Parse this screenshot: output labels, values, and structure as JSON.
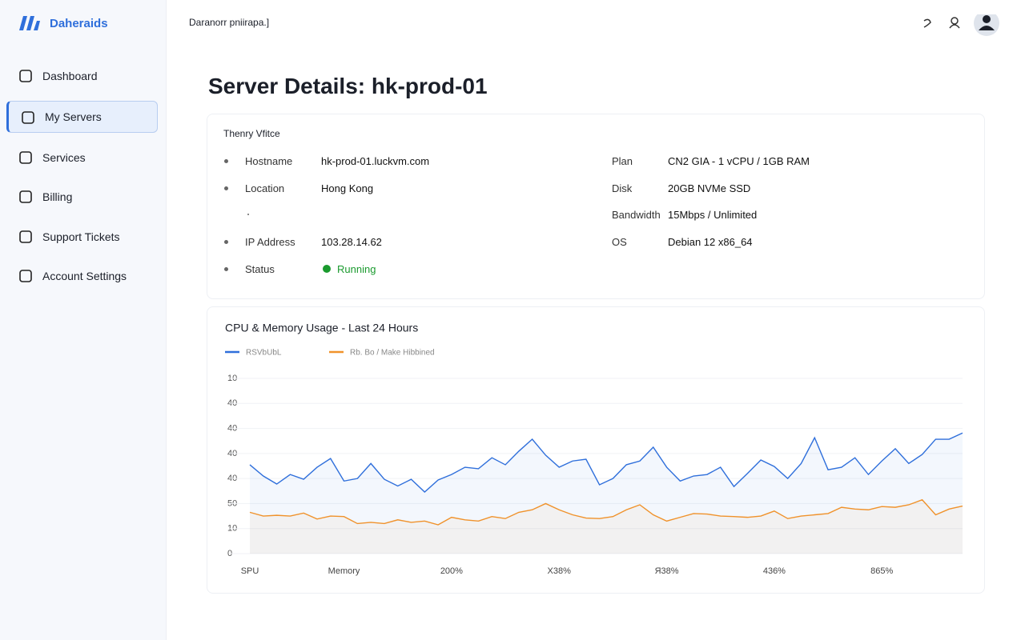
{
  "logo": "Daheraids",
  "header": {
    "breadcrumb": "Daranorr pniirapa.]"
  },
  "sidebar": {
    "items": [
      "Dashboard",
      "My Servers",
      "Services",
      "Billing",
      "Support Tickets",
      "Account Settings"
    ]
  },
  "page_title": "Server Details: hk-prod-01",
  "details": {
    "title": "Thenry Vfitce",
    "left": [
      {
        "label": "Hostname",
        "value": "hk-prod-01.luckvm.com"
      },
      {
        "label": "Location",
        "value": "Hong Kong"
      },
      {
        "label": "IP Address",
        "value": "103.28.14.62"
      },
      {
        "label": "Status",
        "value": "Running"
      }
    ],
    "right": [
      {
        "label": "Plan",
        "value": "CN2 GIA - 1 vCPU / 1GB RAM"
      },
      {
        "label": "Disk",
        "value": "20GB NVMe SSD"
      },
      {
        "label": "Bandwidth",
        "value": "15Mbps / Unlimited"
      },
      {
        "label": "OS",
        "value": "Debian 12 x86_64"
      }
    ]
  },
  "chart_data": {
    "type": "line",
    "title": "CPU & Memory Usage - Last 24 Hours",
    "x": [
      0,
      1,
      2,
      3,
      4,
      5,
      6,
      7,
      8,
      9,
      10,
      11,
      12,
      13,
      14,
      15,
      16,
      17,
      18,
      19,
      20,
      21,
      22,
      23,
      24,
      25,
      26,
      27,
      28,
      29,
      30,
      31,
      32,
      33,
      34,
      35,
      36,
      37,
      38,
      39,
      40,
      41,
      42,
      43,
      44,
      45,
      46,
      47,
      48,
      49,
      50,
      51,
      52,
      53
    ],
    "xlim": [
      0,
      53
    ],
    "xticks": [
      {
        "value": 0,
        "label": "SPU"
      },
      {
        "value": 7,
        "label": "Memory"
      },
      {
        "value": 15,
        "label": "200%"
      },
      {
        "value": 23,
        "label": "X38%"
      },
      {
        "value": 31,
        "label": "Я38%"
      },
      {
        "value": 39,
        "label": "436%"
      },
      {
        "value": 47,
        "label": "865%"
      }
    ],
    "ylim": [
      0,
      70
    ],
    "yticks": [
      0,
      10,
      {
        "value": 20,
        "label": "50"
      },
      {
        "value": 30,
        "label": "40"
      },
      {
        "value": 40,
        "label": "40"
      },
      {
        "value": 50,
        "label": "40"
      },
      {
        "value": 60,
        "label": "40"
      },
      {
        "value": 70,
        "label": "10"
      }
    ],
    "grid": true,
    "series": [
      {
        "name": "RSVbUbL",
        "color": "#2f6fdb",
        "values": [
          35.5,
          31,
          27.8,
          31.6,
          29.7,
          34.5,
          38,
          29,
          30,
          36,
          29.7,
          27,
          29.7,
          24.6,
          29.4,
          31.6,
          34.5,
          33.9,
          38.3,
          35.5,
          40.9,
          45.7,
          39.3,
          34.5,
          37,
          37.7,
          27.5,
          30,
          35.5,
          37,
          42.5,
          34.5,
          29,
          31,
          31.6,
          34.5,
          26.8,
          32,
          37.4,
          34.8,
          30,
          36,
          46.3,
          33.5,
          34.5,
          38.3,
          31.6,
          37,
          41.9,
          36,
          39.6,
          45.7,
          45.7,
          48.2
        ]
      },
      {
        "name": "Rb. Bo / Make Hibbined",
        "color": "#f0922b",
        "values": [
          16.5,
          15,
          15.3,
          15,
          16.2,
          13.8,
          15,
          14.8,
          12,
          12.5,
          12,
          13.5,
          12.5,
          13,
          11.5,
          14.5,
          13.5,
          13,
          14.8,
          14,
          16.5,
          17.5,
          20,
          17.5,
          15.5,
          14.2,
          14,
          14.8,
          17.5,
          19.5,
          15.5,
          13,
          14.5,
          16,
          15.8,
          15,
          14.8,
          14.5,
          15,
          17,
          14,
          15,
          15.5,
          16,
          18.5,
          17.8,
          17.5,
          18.8,
          18.5,
          19.5,
          21.5,
          15.5,
          17.8,
          19
        ]
      }
    ]
  }
}
